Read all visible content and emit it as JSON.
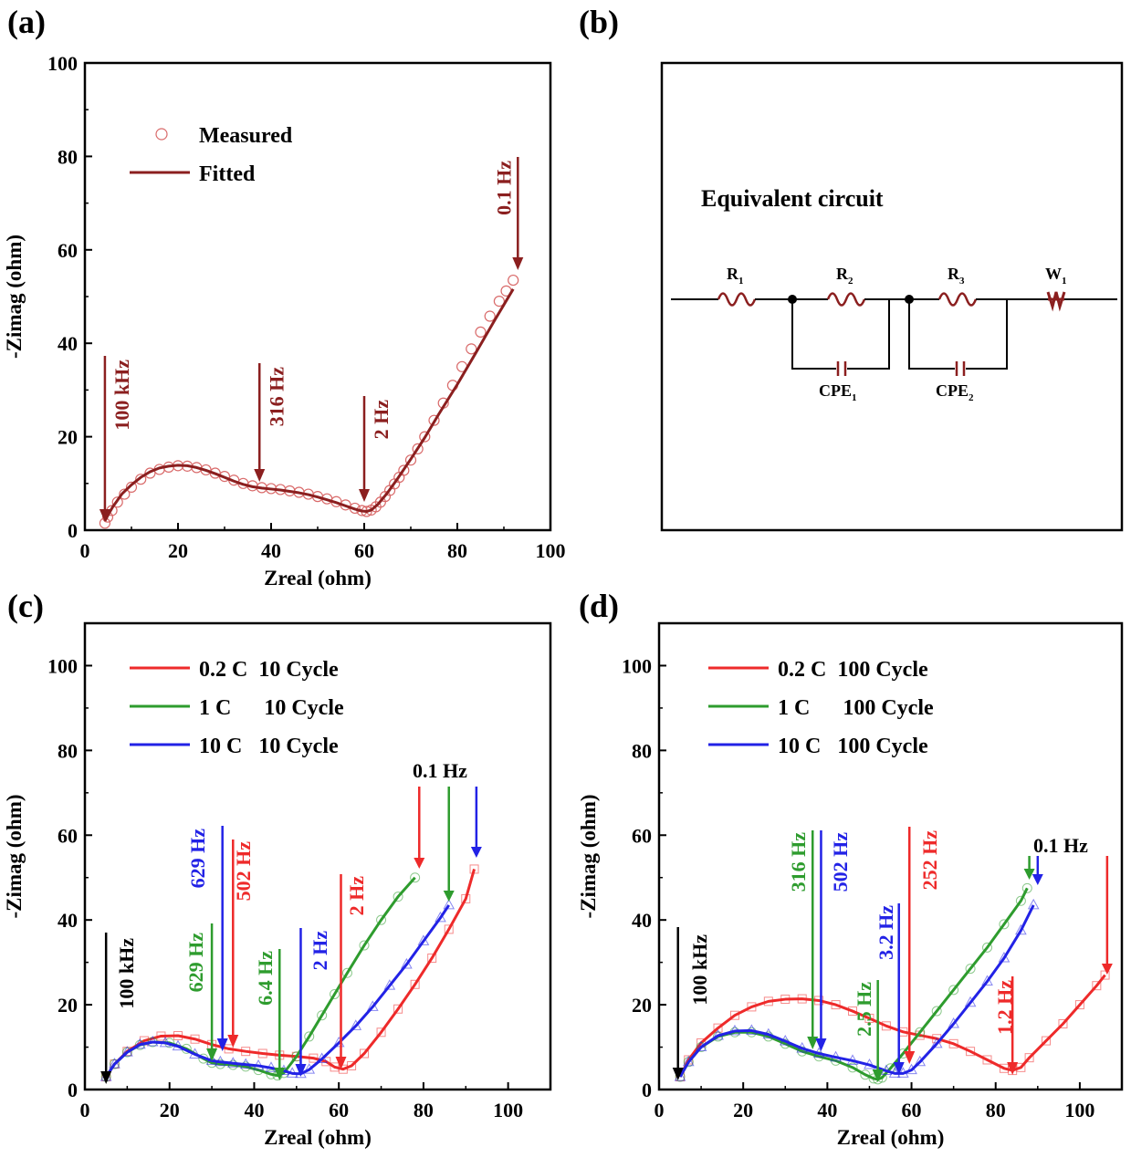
{
  "panel_labels": [
    "(a)",
    "(b)",
    "(c)",
    "(d)"
  ],
  "chart_data": [
    {
      "panel": "(a)",
      "type": "scatter",
      "xlabel": "Zreal (ohm)",
      "ylabel": "-Zimag (ohm)",
      "xlim": [
        0,
        100
      ],
      "ylim": [
        0,
        100
      ],
      "xticks": [
        0,
        20,
        40,
        60,
        80,
        100
      ],
      "yticks": [
        0,
        20,
        40,
        60,
        80,
        100
      ],
      "legend_position": "top-left",
      "series": [
        {
          "name": "Measured",
          "style": "markers",
          "marker": "circle",
          "color": "#d96a6a",
          "x": [
            4.3,
            4.9,
            5.8,
            7,
            8.5,
            10,
            12,
            14,
            16,
            18,
            20,
            22,
            24,
            26,
            28,
            30,
            32,
            34,
            36,
            38,
            40,
            42,
            44,
            46,
            48,
            50,
            52,
            54,
            56,
            58,
            59.5,
            60.5,
            61.5,
            62.5,
            63.5,
            64.5,
            65.5,
            66.5,
            67.5,
            68.5,
            70,
            71.5,
            73,
            75,
            77,
            79,
            81,
            83,
            85,
            87,
            89,
            90.5,
            92
          ],
          "y": [
            1.5,
            2.8,
            4.2,
            6,
            7.7,
            9.2,
            10.9,
            12.2,
            13,
            13.5,
            13.8,
            13.7,
            13.4,
            12.9,
            12.2,
            11.5,
            10.7,
            10,
            9.5,
            9.1,
            8.9,
            8.7,
            8.4,
            8.1,
            7.7,
            7.2,
            6.7,
            6.1,
            5.4,
            4.7,
            4.2,
            4,
            4.3,
            5,
            6,
            7.2,
            8.5,
            9.9,
            11.3,
            12.8,
            15,
            17.4,
            20,
            23.5,
            27.2,
            31,
            35,
            38.8,
            42.4,
            45.8,
            49,
            51.2,
            53.5
          ]
        },
        {
          "name": "Fitted",
          "style": "line",
          "color": "#8b1f1f",
          "x": [
            4.3,
            5,
            6,
            8,
            10,
            12,
            14,
            16,
            18,
            20,
            22,
            24,
            26,
            28,
            30,
            32,
            34,
            36,
            38,
            40,
            42,
            44,
            46,
            48,
            50,
            52,
            54,
            56,
            58,
            59.5,
            60.5,
            61.5,
            63,
            65,
            67,
            70,
            73,
            76,
            80,
            84,
            88,
            92
          ],
          "y": [
            2,
            3.3,
            5,
            7.8,
            9.7,
            11.3,
            12.5,
            13.3,
            13.7,
            13.9,
            13.8,
            13.4,
            12.8,
            12.1,
            11.3,
            10.5,
            9.8,
            9.3,
            9,
            8.8,
            8.6,
            8.3,
            8,
            7.6,
            7.1,
            6.5,
            5.9,
            5.2,
            4.5,
            4.1,
            4,
            4.3,
            5.6,
            8,
            10.8,
            15.2,
            19.8,
            24.8,
            31.2,
            38,
            44.9,
            51.6
          ]
        }
      ],
      "annotations": [
        {
          "label": "100 kHz",
          "x": 4.3
        },
        {
          "label": "316 Hz",
          "x": 37.5
        },
        {
          "label": "2 Hz",
          "x": 60
        },
        {
          "label": "0.1 Hz",
          "x": 93
        }
      ]
    },
    {
      "panel": "(c)",
      "type": "scatter",
      "xlabel": "Zreal (ohm)",
      "ylabel": "-Zimag (ohm)",
      "xlim": [
        0,
        110
      ],
      "ylim": [
        0,
        110
      ],
      "xticks": [
        0,
        20,
        40,
        60,
        80,
        100
      ],
      "yticks": [
        0,
        20,
        40,
        60,
        80,
        100
      ],
      "legend_position": "top-left",
      "series": [
        {
          "name": "0.2 C  10 Cycle",
          "color": "#ee2a2a",
          "marker": "square",
          "x": [
            5,
            7,
            10,
            14,
            18,
            22,
            26,
            30,
            34,
            38,
            42,
            46,
            50,
            54,
            57,
            59,
            61,
            63,
            66,
            70,
            74,
            78,
            82,
            86,
            90,
            92
          ],
          "y": [
            3,
            6,
            9,
            11.5,
            12.6,
            12.7,
            11.9,
            10.6,
            9.6,
            9,
            8.5,
            8.1,
            7.8,
            7.4,
            6.6,
            5.3,
            4.8,
            5.6,
            8.5,
            13.5,
            19,
            24.8,
            31,
            37.8,
            45,
            52
          ]
        },
        {
          "name": "1 C      10 Cycle",
          "color": "#2e9c2e",
          "marker": "circle",
          "x": [
            5,
            7,
            10,
            13,
            16,
            20,
            24,
            28,
            30,
            32,
            35,
            38,
            41,
            44,
            45.5,
            47,
            50,
            53,
            56,
            59,
            62,
            66,
            70,
            74,
            78
          ],
          "y": [
            3,
            6,
            8.8,
            10.5,
            11.2,
            11,
            9.6,
            7.3,
            6.3,
            6,
            5.8,
            5.4,
            4.6,
            3.6,
            3.3,
            3.9,
            7.8,
            12.5,
            17.5,
            22.5,
            27.5,
            34,
            40,
            45.5,
            50
          ]
        },
        {
          "name": "10 C   10 Cycle",
          "color": "#2222e6",
          "marker": "triangle",
          "x": [
            5,
            7,
            10,
            13,
            16,
            19,
            22,
            26,
            30,
            32,
            35,
            38,
            41,
            44,
            47,
            49,
            51,
            53,
            56,
            60,
            64,
            68,
            72,
            76,
            80,
            84,
            86
          ],
          "y": [
            3,
            6,
            8.8,
            10.6,
            11.2,
            11,
            10.2,
            8.3,
            6.8,
            6.5,
            6.2,
            5.9,
            5.6,
            5.1,
            4.4,
            3.8,
            3.7,
            4.7,
            7.2,
            11,
            15,
            19.5,
            24.5,
            29.5,
            35,
            40.5,
            43.5
          ]
        }
      ],
      "annotations": [
        {
          "label": "100 kHz",
          "x": 5,
          "color": "#000000"
        },
        {
          "label": "629 Hz",
          "x": 30,
          "color": "#2e9c2e"
        },
        {
          "label": "629 Hz",
          "x": 32.5,
          "color": "#2222e6"
        },
        {
          "label": "502 Hz",
          "x": 35,
          "color": "#ee2a2a"
        },
        {
          "label": "6.4 Hz",
          "x": 46,
          "color": "#2e9c2e"
        },
        {
          "label": "2 Hz",
          "x": 51,
          "color": "#2222e6"
        },
        {
          "label": "2 Hz",
          "x": 60.5,
          "color": "#ee2a2a"
        },
        {
          "label": "0.1 Hz",
          "x": 86,
          "color": "#000000"
        }
      ]
    },
    {
      "panel": "(d)",
      "type": "scatter",
      "xlabel": "Zreal (ohm)",
      "ylabel": "-Zimag (ohm)",
      "xlim": [
        0,
        110
      ],
      "ylim": [
        0,
        110
      ],
      "xticks": [
        0,
        20,
        40,
        60,
        80,
        100
      ],
      "yticks": [
        0,
        20,
        40,
        60,
        80,
        100
      ],
      "legend_position": "top-left",
      "series": [
        {
          "name": "0.2 C  100 Cycle",
          "color": "#ee2a2a",
          "marker": "square",
          "x": [
            5,
            7,
            10,
            14,
            18,
            22,
            26,
            30,
            34,
            38,
            42,
            46,
            50,
            54,
            58,
            62,
            66,
            70,
            74,
            78,
            82,
            84,
            86,
            88,
            92,
            96,
            100,
            104,
            106
          ],
          "y": [
            3,
            7,
            11,
            14.5,
            17.5,
            19.5,
            20.8,
            21.3,
            21.4,
            21,
            20,
            18.5,
            16.8,
            15,
            13.6,
            12.8,
            12,
            10.8,
            9,
            7,
            5,
            4.5,
            5.2,
            7.5,
            11.5,
            15.5,
            20,
            24.5,
            27
          ]
        },
        {
          "name": "1 C      100 Cycle",
          "color": "#2e9c2e",
          "marker": "circle",
          "x": [
            5,
            7,
            10,
            14,
            18,
            22,
            26,
            30,
            34,
            38,
            42,
            46,
            49,
            51,
            52,
            53,
            55,
            58,
            62,
            66,
            70,
            74,
            78,
            82,
            86,
            87.5
          ],
          "y": [
            3,
            6.5,
            10,
            12.5,
            13.5,
            13.5,
            12.5,
            10.8,
            9,
            7.8,
            6.8,
            5.2,
            3.5,
            2.6,
            2.4,
            2.8,
            5,
            8.5,
            13.5,
            18.5,
            23.5,
            28.5,
            33.5,
            39,
            44.5,
            47.5
          ]
        },
        {
          "name": "10 C   100 Cycle",
          "color": "#2222e6",
          "marker": "triangle",
          "x": [
            5,
            7,
            10,
            14,
            18,
            22,
            26,
            30,
            34,
            38,
            42,
            46,
            50,
            54,
            56,
            58,
            60,
            62,
            66,
            70,
            74,
            78,
            82,
            86,
            89
          ],
          "y": [
            3,
            6.5,
            10,
            12.7,
            13.8,
            13.9,
            13,
            11.4,
            9.7,
            8.5,
            7.6,
            6.8,
            5.8,
            4.4,
            3.8,
            3.8,
            4.6,
            6.5,
            10.8,
            15.5,
            20.5,
            25.5,
            31,
            37.5,
            43.5
          ]
        }
      ],
      "annotations": [
        {
          "label": "100 kHz",
          "x": 4.5,
          "color": "#000000"
        },
        {
          "label": "316 Hz",
          "x": 36.5,
          "color": "#2e9c2e"
        },
        {
          "label": "502 Hz",
          "x": 38.5,
          "color": "#2222e6"
        },
        {
          "label": "2.5 Hz",
          "x": 52,
          "color": "#2e9c2e"
        },
        {
          "label": "3.2 Hz",
          "x": 57,
          "color": "#2222e6"
        },
        {
          "label": "252 Hz",
          "x": 59.5,
          "color": "#ee2a2a"
        },
        {
          "label": "1.2 Hz",
          "x": 84,
          "color": "#ee2a2a"
        },
        {
          "label": "0.1 Hz",
          "x": 88,
          "color": "#000000"
        }
      ]
    }
  ],
  "circuit": {
    "title": "Equivalent circuit",
    "elements": [
      {
        "name": "R",
        "sub": "1"
      },
      {
        "name": "R",
        "sub": "2"
      },
      {
        "name": "R",
        "sub": "3"
      },
      {
        "name": "W",
        "sub": "1"
      },
      {
        "name": "CPE",
        "sub": "1"
      },
      {
        "name": "CPE",
        "sub": "2"
      }
    ]
  }
}
